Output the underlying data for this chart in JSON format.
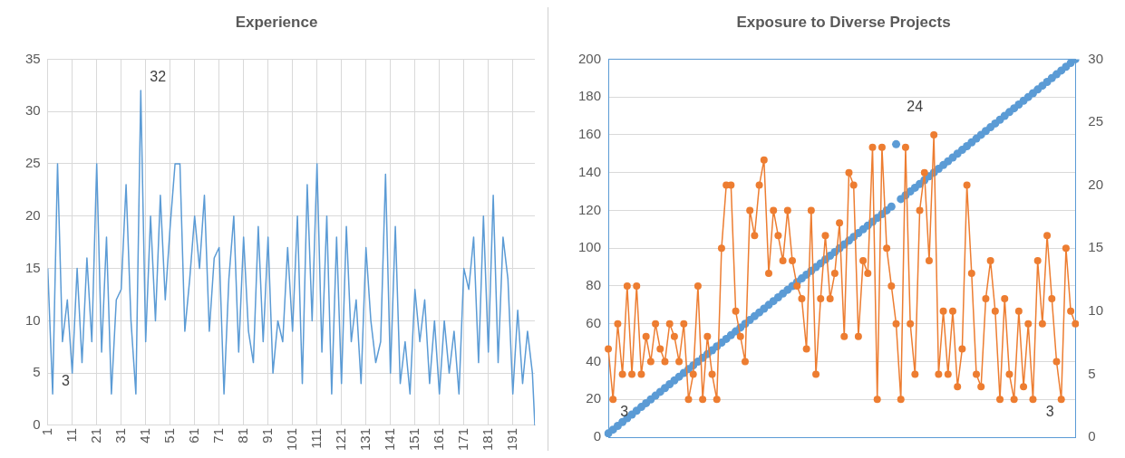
{
  "chart_data": [
    {
      "type": "line",
      "title": "Experience",
      "xlim": [
        1,
        200
      ],
      "xticks": [
        1,
        11,
        21,
        31,
        41,
        51,
        61,
        71,
        81,
        91,
        101,
        111,
        121,
        131,
        141,
        151,
        161,
        171,
        181,
        191
      ],
      "ylim": [
        0,
        35
      ],
      "yticks": [
        0,
        5,
        10,
        15,
        20,
        25,
        30,
        35
      ],
      "grid": true,
      "series": [
        {
          "color": "#5b9bd5",
          "x": [
            1,
            3,
            5,
            7,
            9,
            11,
            13,
            15,
            17,
            19,
            21,
            23,
            25,
            27,
            29,
            31,
            33,
            35,
            37,
            39,
            41,
            43,
            45,
            47,
            49,
            51,
            53,
            55,
            57,
            59,
            61,
            63,
            65,
            67,
            69,
            71,
            73,
            75,
            77,
            79,
            81,
            83,
            85,
            87,
            89,
            91,
            93,
            95,
            97,
            99,
            101,
            103,
            105,
            107,
            109,
            111,
            113,
            115,
            117,
            119,
            121,
            123,
            125,
            127,
            129,
            131,
            133,
            135,
            137,
            139,
            141,
            143,
            145,
            147,
            149,
            151,
            153,
            155,
            157,
            159,
            161,
            163,
            165,
            167,
            169,
            171,
            173,
            175,
            177,
            179,
            181,
            183,
            185,
            187,
            189,
            191,
            193,
            195,
            197,
            199,
            200
          ],
          "values": [
            15,
            3,
            25,
            8,
            12,
            5,
            15,
            6,
            16,
            8,
            25,
            7,
            18,
            3,
            12,
            13,
            23,
            10,
            3,
            32,
            8,
            20,
            10,
            22,
            12,
            19,
            25,
            25,
            9,
            14,
            20,
            15,
            22,
            9,
            16,
            17,
            3,
            14,
            20,
            7,
            18,
            9,
            6,
            19,
            8,
            18,
            5,
            10,
            8,
            17,
            9,
            20,
            4,
            23,
            10,
            25,
            7,
            20,
            3,
            18,
            4,
            19,
            8,
            12,
            4,
            17,
            10,
            6,
            8,
            24,
            5,
            19,
            4,
            8,
            3,
            13,
            8,
            12,
            4,
            10,
            3,
            10,
            5,
            9,
            3,
            15,
            13,
            18,
            6,
            20,
            7,
            22,
            6,
            18,
            14,
            3,
            11,
            4,
            9,
            5,
            0
          ]
        }
      ],
      "annotations": [
        {
          "text": "32",
          "x": 39,
          "y": 32
        },
        {
          "text": "3",
          "x": 3,
          "y": 3
        }
      ]
    },
    {
      "type": "scatter",
      "title": "Exposure to Diverse Projects",
      "categories": [
        null,
        null,
        null,
        null,
        null,
        null,
        null,
        null,
        null,
        null,
        null,
        null,
        null,
        null,
        null,
        null,
        null,
        null,
        null,
        null,
        null,
        null,
        null,
        null,
        null,
        null,
        null,
        null,
        null,
        null,
        null,
        null,
        null,
        null,
        null,
        null,
        null,
        null,
        null,
        null,
        null,
        null,
        null,
        null,
        null,
        null,
        null,
        null,
        null,
        null,
        null,
        null,
        null,
        null,
        null,
        null,
        null,
        null,
        null,
        null,
        null,
        null,
        null,
        null,
        null,
        null,
        null,
        null,
        null,
        null,
        null,
        null,
        null,
        null,
        null,
        null,
        null,
        null,
        null,
        null,
        null,
        null,
        null,
        null,
        null,
        null,
        null,
        null,
        null,
        null,
        null,
        null,
        null,
        null,
        null,
        null,
        null,
        null,
        null,
        null
      ],
      "ylim": [
        0,
        200
      ],
      "yticks": [
        0,
        20,
        40,
        60,
        80,
        100,
        120,
        140,
        160,
        180,
        200
      ],
      "y2lim": [
        0,
        30
      ],
      "y2ticks": [
        0,
        5,
        10,
        15,
        20,
        25,
        30
      ],
      "grid": "y",
      "marker": "circle",
      "series": [
        {
          "color": "#5b9bd5",
          "values": [
            2,
            4,
            6,
            8,
            10,
            12,
            14,
            16,
            18,
            20,
            22,
            24,
            26,
            28,
            30,
            32,
            34,
            36,
            38,
            40,
            42,
            44,
            46,
            48,
            50,
            52,
            54,
            56,
            58,
            60,
            62,
            64,
            66,
            68,
            70,
            72,
            74,
            76,
            78,
            80,
            82,
            84,
            86,
            88,
            90,
            92,
            94,
            96,
            98,
            100,
            102,
            104,
            106,
            108,
            110,
            112,
            114,
            116,
            118,
            120,
            122,
            155,
            126,
            128,
            130,
            132,
            134,
            136,
            138,
            140,
            142,
            144,
            146,
            148,
            150,
            152,
            154,
            156,
            158,
            160,
            162,
            164,
            166,
            168,
            170,
            172,
            174,
            176,
            178,
            180,
            182,
            184,
            186,
            188,
            190,
            192,
            194,
            196,
            198,
            200
          ]
        },
        {
          "type": "line",
          "axis": "y2",
          "color": "#ed7d31",
          "values": [
            7,
            3,
            9,
            5,
            12,
            5,
            12,
            5,
            8,
            6,
            9,
            7,
            6,
            9,
            8,
            6,
            9,
            3,
            5,
            12,
            3,
            8,
            5,
            3,
            15,
            20,
            20,
            10,
            8,
            6,
            18,
            16,
            20,
            22,
            13,
            18,
            16,
            14,
            18,
            14,
            12,
            11,
            7,
            18,
            5,
            11,
            16,
            11,
            13,
            17,
            8,
            21,
            20,
            8,
            14,
            13,
            23,
            3,
            23,
            15,
            12,
            9,
            3,
            23,
            9,
            5,
            18,
            21,
            14,
            24,
            5,
            10,
            5,
            10,
            4,
            7,
            20,
            13,
            5,
            4,
            11,
            14,
            10,
            3,
            11,
            5,
            3,
            10,
            4,
            9,
            3,
            14,
            9,
            16,
            11,
            6,
            3,
            15,
            10,
            9
          ]
        }
      ],
      "annotations": [
        "24",
        "3",
        "3"
      ]
    }
  ]
}
